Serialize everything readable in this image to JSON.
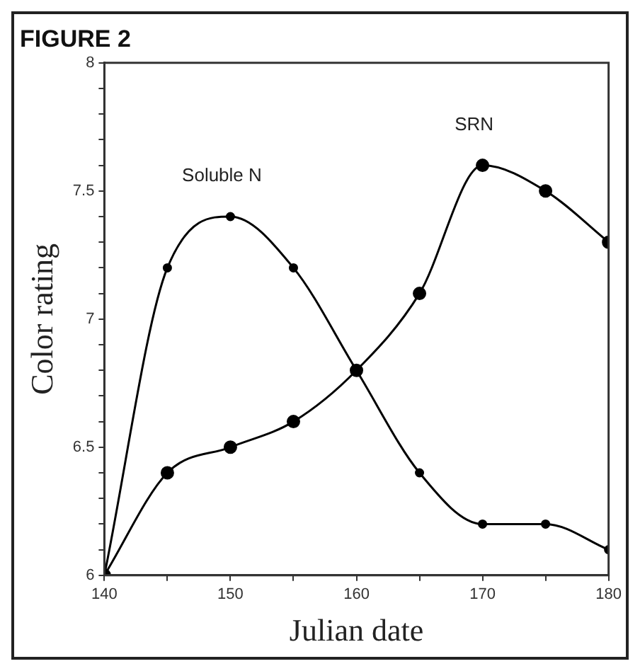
{
  "chart_data": {
    "type": "line",
    "title": "FIGURE 2",
    "xlabel": "Julian date",
    "ylabel": "Color rating",
    "x": [
      140,
      145,
      150,
      155,
      160,
      165,
      170,
      175,
      180
    ],
    "series": [
      {
        "name": "Soluble N",
        "color": "#000000",
        "values": [
          6.0,
          7.2,
          7.4,
          7.2,
          6.8,
          6.4,
          6.2,
          6.2,
          6.1
        ]
      },
      {
        "name": "SRN",
        "color": "#000000",
        "values": [
          6.0,
          6.4,
          6.5,
          6.6,
          6.8,
          7.1,
          7.6,
          7.5,
          7.3
        ]
      }
    ],
    "xlim": [
      140,
      180
    ],
    "xticks": [
      140,
      {
        "value": 145,
        "label": null
      },
      150,
      {
        "value": 155,
        "label": null
      },
      160,
      {
        "value": 165,
        "label": null
      },
      170,
      {
        "value": 175,
        "label": null
      },
      180
    ],
    "ylim": [
      6,
      8
    ],
    "yticks": [
      6,
      {
        "value": 6.1,
        "label": null
      },
      {
        "value": 6.2,
        "label": null
      },
      {
        "value": 6.3,
        "label": null
      },
      {
        "value": 6.4,
        "label": null
      },
      6.5,
      {
        "value": 6.6,
        "label": null
      },
      {
        "value": 6.7,
        "label": null
      },
      {
        "value": 6.8,
        "label": null
      },
      {
        "value": 6.9,
        "label": null
      },
      7,
      {
        "value": 7.1,
        "label": null
      },
      {
        "value": 7.2,
        "label": null
      },
      {
        "value": 7.3,
        "label": null
      },
      {
        "value": 7.4,
        "label": null
      },
      7.5,
      {
        "value": 7.6,
        "label": null
      },
      {
        "value": 7.7,
        "label": null
      },
      {
        "value": 7.8,
        "label": null
      },
      {
        "value": 7.9,
        "label": null
      },
      8
    ],
    "grid": false,
    "legend": false,
    "marker": "circle",
    "line_style": "solid"
  }
}
